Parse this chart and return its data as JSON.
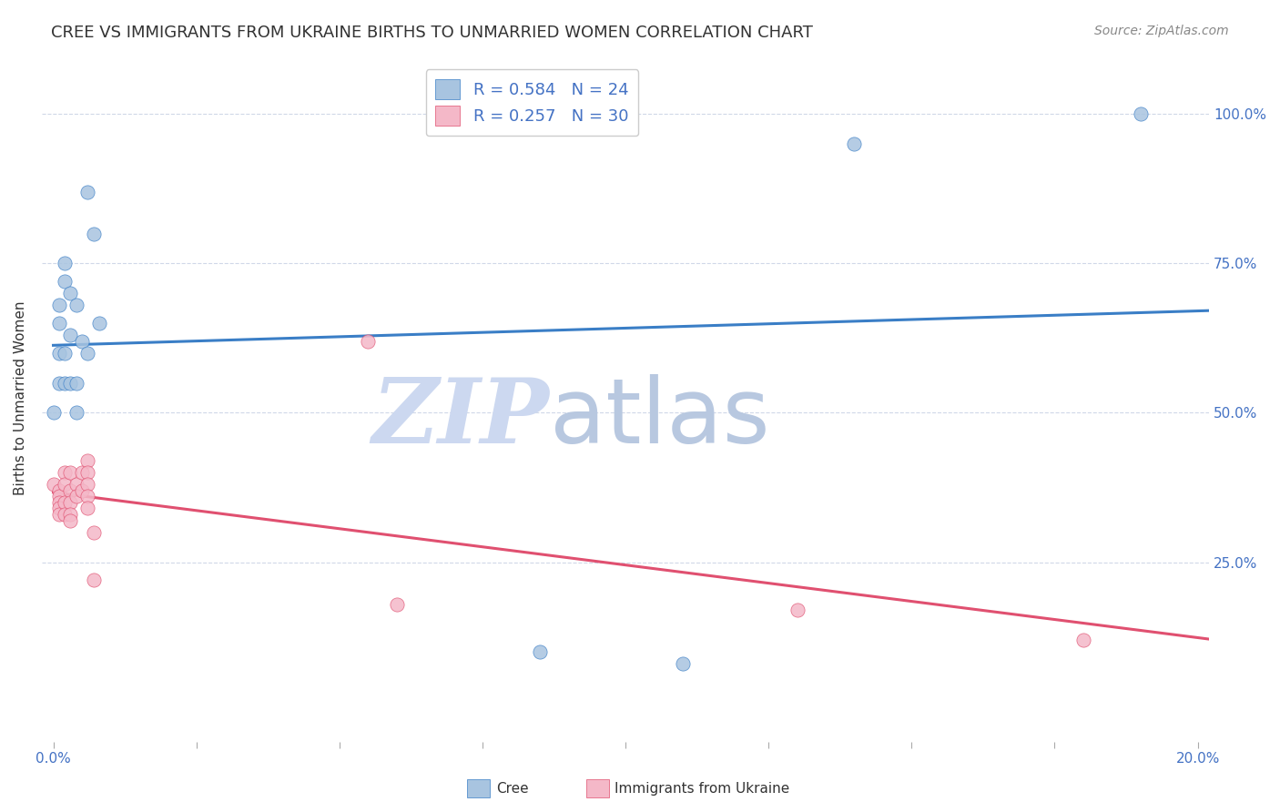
{
  "title": "CREE VS IMMIGRANTS FROM UKRAINE BIRTHS TO UNMARRIED WOMEN CORRELATION CHART",
  "source": "Source: ZipAtlas.com",
  "ylabel": "Births to Unmarried Women",
  "cree": {
    "label": "Cree",
    "R": 0.584,
    "N": 24,
    "color": "#a8c4e0",
    "line_color": "#3a7ec6",
    "x": [
      0.0,
      0.001,
      0.001,
      0.001,
      0.001,
      0.002,
      0.002,
      0.002,
      0.002,
      0.003,
      0.003,
      0.003,
      0.004,
      0.004,
      0.004,
      0.005,
      0.006,
      0.006,
      0.007,
      0.008,
      0.085,
      0.11,
      0.14,
      0.19
    ],
    "y": [
      0.5,
      0.68,
      0.65,
      0.6,
      0.55,
      0.75,
      0.72,
      0.6,
      0.55,
      0.7,
      0.63,
      0.55,
      0.68,
      0.55,
      0.5,
      0.62,
      0.6,
      0.87,
      0.8,
      0.65,
      0.1,
      0.08,
      0.95,
      1.0
    ]
  },
  "ukraine": {
    "label": "Immigrants from Ukraine",
    "R": 0.257,
    "N": 30,
    "color": "#f4b8c8",
    "line_color": "#e05070",
    "x": [
      0.0,
      0.001,
      0.001,
      0.001,
      0.001,
      0.001,
      0.002,
      0.002,
      0.002,
      0.002,
      0.003,
      0.003,
      0.003,
      0.003,
      0.003,
      0.004,
      0.004,
      0.005,
      0.005,
      0.006,
      0.006,
      0.006,
      0.006,
      0.006,
      0.007,
      0.007,
      0.055,
      0.06,
      0.13,
      0.18
    ],
    "y": [
      0.38,
      0.37,
      0.36,
      0.35,
      0.34,
      0.33,
      0.4,
      0.38,
      0.35,
      0.33,
      0.4,
      0.37,
      0.35,
      0.33,
      0.32,
      0.38,
      0.36,
      0.4,
      0.37,
      0.42,
      0.4,
      0.38,
      0.36,
      0.34,
      0.3,
      0.22,
      0.62,
      0.18,
      0.17,
      0.12
    ]
  },
  "yticks_right": [
    "25.0%",
    "50.0%",
    "75.0%",
    "100.0%"
  ],
  "yticks_right_vals": [
    0.25,
    0.5,
    0.75,
    1.0
  ],
  "xlim": [
    -0.002,
    0.202
  ],
  "ylim": [
    -0.05,
    1.1
  ],
  "grid_color": "#d0d8e8",
  "bg_color": "#ffffff",
  "title_fontsize": 13,
  "source_fontsize": 10,
  "legend_fontsize": 13,
  "watermark_color_ZIP": "#ccd8f0",
  "watermark_color_atlas": "#b8c8e0",
  "legend_text_color": "#4472c4",
  "tick_label_color": "#4472c4"
}
